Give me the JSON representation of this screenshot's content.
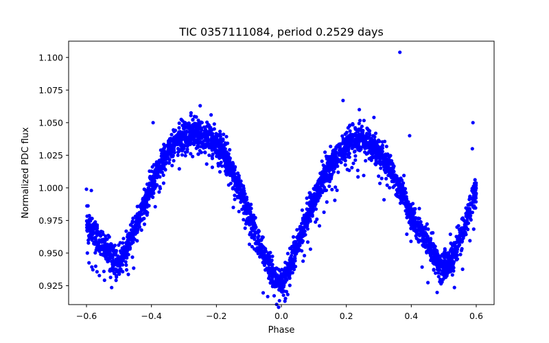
{
  "chart_data": {
    "type": "scatter",
    "title": "TIC 0357111084, period 0.2529 days",
    "xlabel": "Phase",
    "ylabel": "Normalized PDC flux",
    "xlim": [
      -0.655,
      0.655
    ],
    "ylim": [
      0.9105,
      1.1125
    ],
    "xticks": [
      -0.6,
      -0.4,
      -0.2,
      0.0,
      0.2,
      0.4,
      0.6
    ],
    "xtick_labels": [
      "−0.6",
      "−0.4",
      "−0.2",
      "0.0",
      "0.2",
      "0.4",
      "0.6"
    ],
    "yticks": [
      0.925,
      0.95,
      0.975,
      1.0,
      1.025,
      1.05,
      1.075,
      1.1
    ],
    "ytick_labels": [
      "0.925",
      "0.950",
      "0.975",
      "1.000",
      "1.025",
      "1.050",
      "1.075",
      "1.100"
    ],
    "grid": false,
    "legend": "none",
    "series": [
      {
        "color": "#0000ff",
        "marker": "circle",
        "curve": {
          "phase": [
            -0.6,
            -0.55,
            -0.5,
            -0.45,
            -0.4,
            -0.35,
            -0.3,
            -0.25,
            -0.2,
            -0.15,
            -0.1,
            -0.05,
            0.0,
            0.05,
            0.1,
            0.15,
            0.2,
            0.25,
            0.3,
            0.35,
            0.4,
            0.45,
            0.5,
            0.55,
            0.6
          ],
          "flux": [
            0.973,
            0.955,
            0.944,
            0.968,
            1.002,
            1.027,
            1.04,
            1.042,
            1.034,
            1.013,
            0.98,
            0.946,
            0.928,
            0.958,
            0.99,
            1.015,
            1.032,
            1.036,
            1.027,
            1.006,
            0.98,
            0.958,
            0.94,
            0.96,
            0.998
          ]
        },
        "outliers": [
          {
            "x": -0.6,
            "y": 0.999
          },
          {
            "x": -0.585,
            "y": 0.998
          },
          {
            "x": -0.395,
            "y": 1.05
          },
          {
            "x": -0.25,
            "y": 1.063
          },
          {
            "x": 0.19,
            "y": 1.067
          },
          {
            "x": 0.24,
            "y": 1.06
          },
          {
            "x": 0.285,
            "y": 1.054
          },
          {
            "x": 0.365,
            "y": 1.104
          },
          {
            "x": 0.395,
            "y": 1.04
          },
          {
            "x": 0.59,
            "y": 1.05
          },
          {
            "x": 0.588,
            "y": 1.03
          }
        ]
      }
    ]
  }
}
